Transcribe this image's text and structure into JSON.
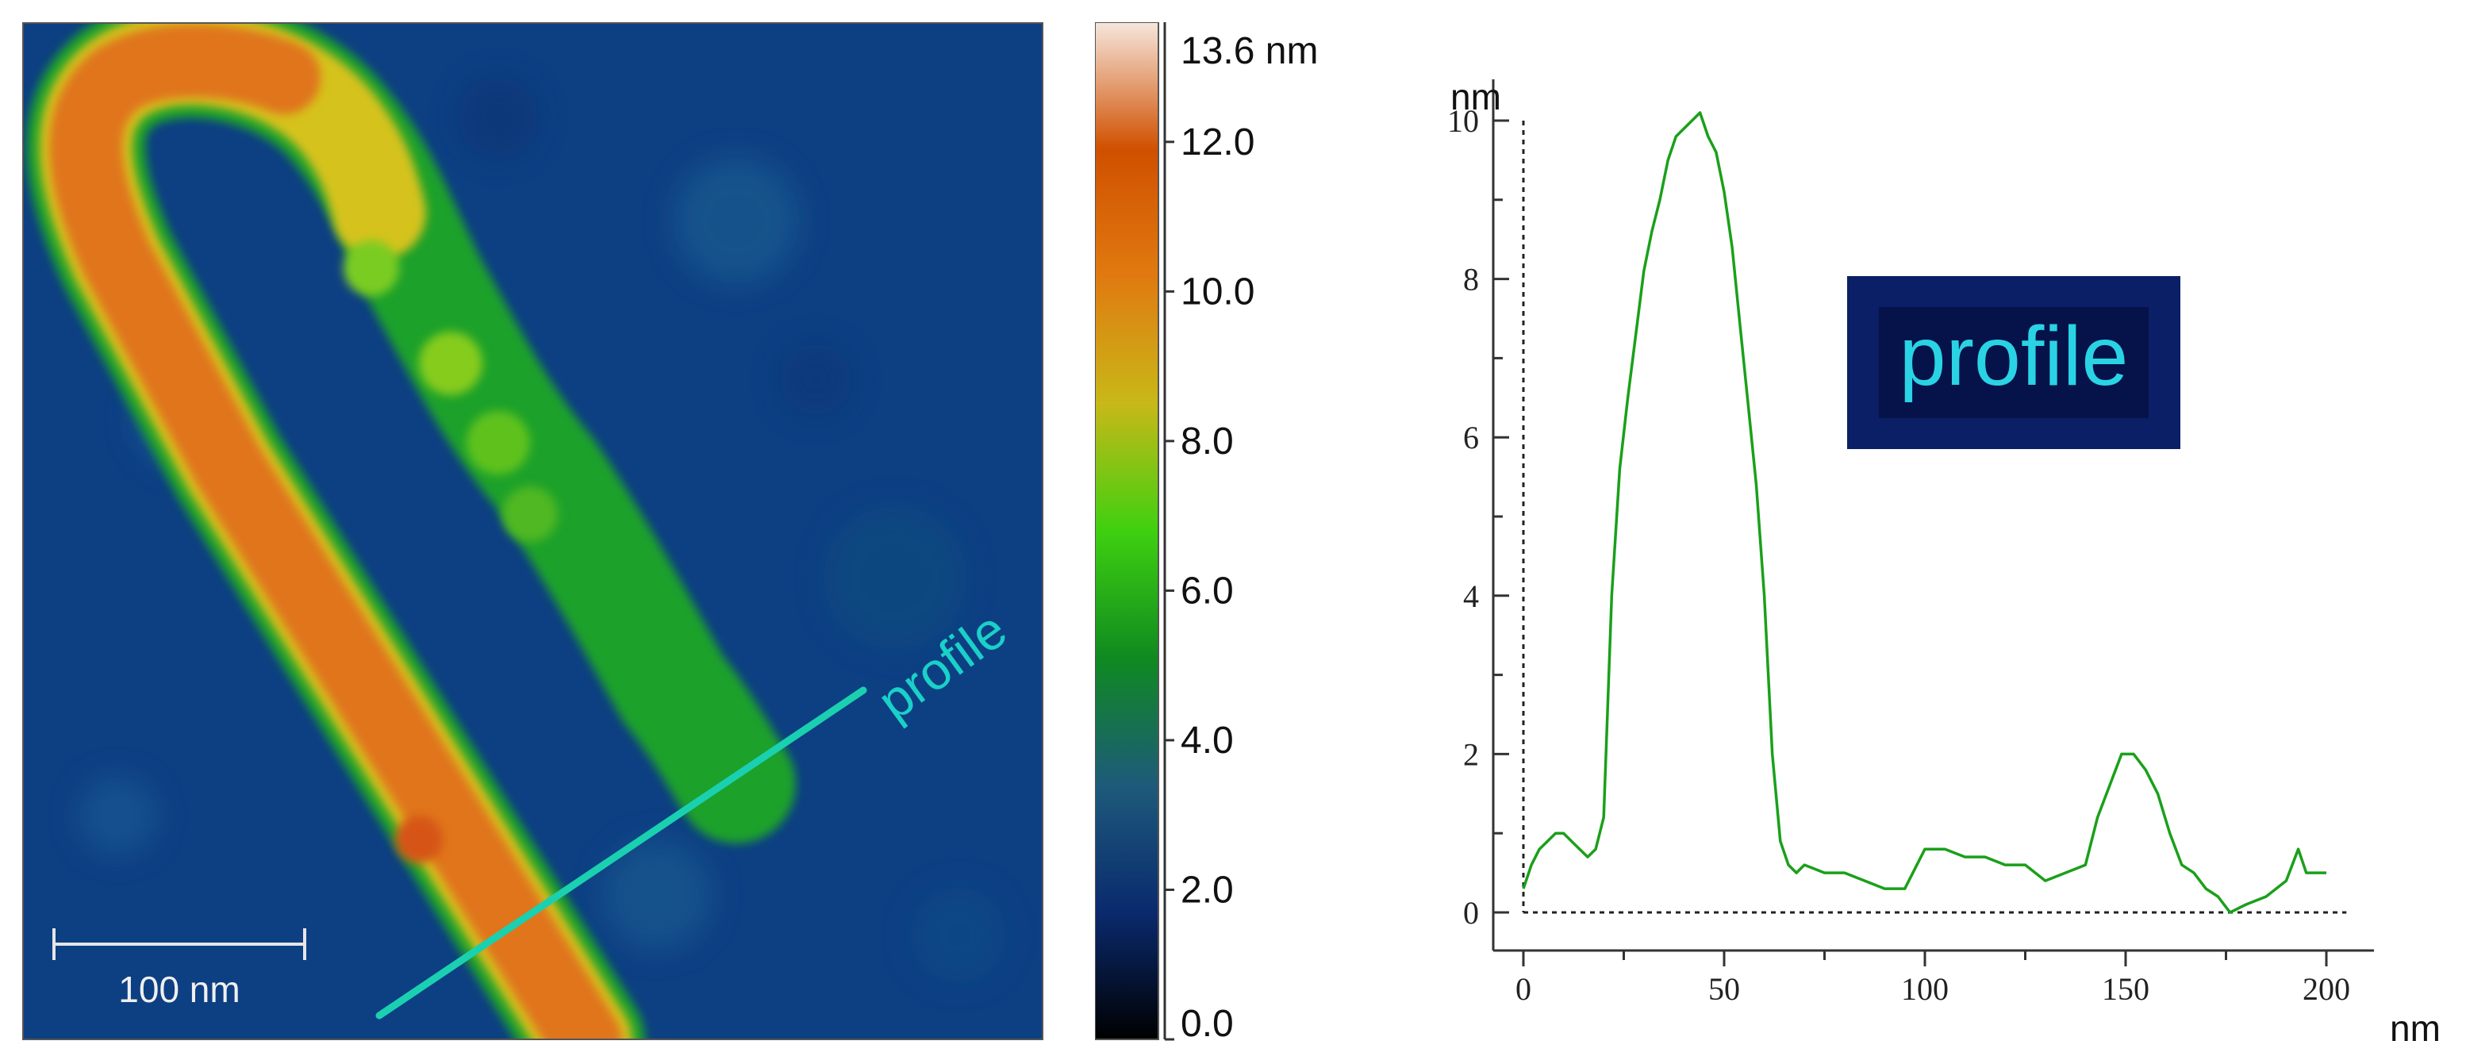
{
  "afm_image": {
    "scale_bar_label": "100 nm",
    "profile_label": "profile"
  },
  "colorbar": {
    "max_label": "13.6 nm",
    "tick_labels": [
      "12.0",
      "10.0",
      "8.0",
      "6.0",
      "4.0",
      "2.0",
      "0.0"
    ],
    "tick_values": [
      12,
      10,
      8,
      6,
      4,
      2,
      0
    ],
    "range": [
      0,
      13.6
    ],
    "stops": [
      "#000000",
      "#0a2a6e",
      "#1d5a7a",
      "#0f8a20",
      "#3fd010",
      "#c8b818",
      "#e07a10",
      "#d05000",
      "#f6e6dc"
    ]
  },
  "chart_data": {
    "type": "line",
    "title": "",
    "legend_box": "profile",
    "xlabel": "nm",
    "ylabel": "nm",
    "xlim": [
      0,
      200
    ],
    "ylim": [
      0,
      10
    ],
    "x_ticks": [
      0,
      50,
      100,
      150,
      200
    ],
    "x_tick_labels": [
      "0",
      "50",
      "100",
      "150",
      "200"
    ],
    "y_ticks": [
      0,
      2,
      4,
      6,
      8,
      10
    ],
    "y_tick_labels": [
      "0",
      "2",
      "4",
      "6",
      "8",
      "10"
    ],
    "line_color": "#1aa01a",
    "series": [
      {
        "name": "profile",
        "x": [
          0,
          2,
          4,
          6,
          8,
          10,
          12,
          14,
          16,
          18,
          20,
          22,
          24,
          26,
          28,
          30,
          32,
          34,
          36,
          38,
          40,
          42,
          44,
          46,
          48,
          50,
          52,
          54,
          56,
          58,
          60,
          62,
          64,
          66,
          68,
          70,
          75,
          80,
          85,
          90,
          95,
          100,
          105,
          110,
          115,
          120,
          125,
          130,
          135,
          140,
          143,
          146,
          149,
          152,
          155,
          158,
          161,
          164,
          167,
          170,
          173,
          176,
          180,
          185,
          190,
          193,
          195,
          200
        ],
        "y": [
          0.3,
          0.6,
          0.8,
          0.9,
          1.0,
          1.0,
          0.9,
          0.8,
          0.7,
          0.8,
          1.2,
          4.0,
          5.6,
          6.5,
          7.3,
          8.1,
          8.6,
          9.0,
          9.5,
          9.8,
          9.9,
          10.0,
          10.1,
          9.8,
          9.6,
          9.1,
          8.4,
          7.4,
          6.4,
          5.4,
          4.0,
          2.0,
          0.9,
          0.6,
          0.5,
          0.6,
          0.5,
          0.5,
          0.4,
          0.3,
          0.3,
          0.8,
          0.8,
          0.7,
          0.7,
          0.6,
          0.6,
          0.4,
          0.5,
          0.6,
          1.2,
          1.6,
          2.0,
          2.0,
          1.8,
          1.5,
          1.0,
          0.6,
          0.5,
          0.3,
          0.2,
          0.0,
          0.1,
          0.2,
          0.4,
          0.8,
          0.5,
          0.5
        ]
      }
    ]
  }
}
